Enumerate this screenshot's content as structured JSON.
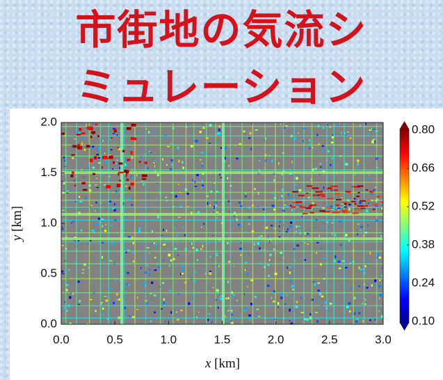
{
  "chart_data": {
    "type": "image",
    "title": [
      "市街地の気流シ",
      "ミュレーション"
    ],
    "xlabel": {
      "var": "x",
      "unit": "[km]"
    },
    "ylabel": {
      "var": "y",
      "unit": "[km]"
    },
    "xlim": [
      0,
      3
    ],
    "ylim": [
      0,
      2
    ],
    "xticks": [
      {
        "value": 0,
        "label": "0.0"
      },
      {
        "value": 0.5,
        "label": "0.5"
      },
      {
        "value": 1,
        "label": "1.0"
      },
      {
        "value": 1.5,
        "label": "1.5"
      },
      {
        "value": 2,
        "label": "2.0"
      },
      {
        "value": 2.5,
        "label": "2.5"
      },
      {
        "value": 3,
        "label": "3.0"
      }
    ],
    "yticks": [
      {
        "value": 0,
        "label": "0.0"
      },
      {
        "value": 0.5,
        "label": "0.5"
      },
      {
        "value": 1,
        "label": "1.0"
      },
      {
        "value": 1.5,
        "label": "1.5"
      },
      {
        "value": 2,
        "label": "2.0"
      }
    ],
    "colorbar": {
      "lim": [
        0.1,
        0.8
      ],
      "colormap": "jet",
      "ticks": [
        {
          "value": 0.1,
          "label": "0.10"
        },
        {
          "value": 0.24,
          "label": "0.24"
        },
        {
          "value": 0.38,
          "label": "0.38"
        },
        {
          "value": 0.52,
          "label": "0.52"
        },
        {
          "value": 0.66,
          "label": "0.66"
        },
        {
          "value": 0.8,
          "label": "0.80"
        }
      ]
    }
  }
}
